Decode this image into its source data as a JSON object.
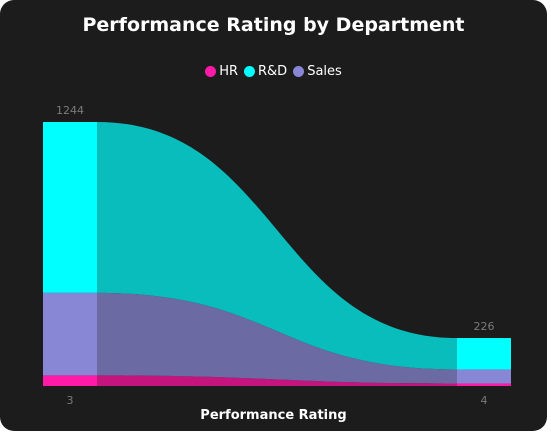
{
  "chart_data": {
    "type": "ribbon",
    "title": "Performance Rating by Department",
    "xlabel": "Performance Rating",
    "categories": [
      "3",
      "4"
    ],
    "totals": [
      1244,
      226
    ],
    "series": [
      {
        "name": "HR",
        "color": "#ff1aa8",
        "values": [
          50,
          12
        ]
      },
      {
        "name": "Sales",
        "color": "#8787d6",
        "values": [
          389,
          66
        ]
      },
      {
        "name": "R&D",
        "color": "#00ffff",
        "values": [
          805,
          148
        ]
      }
    ],
    "legend": {
      "order": [
        "HR",
        "R&D",
        "Sales"
      ],
      "placement": "top-center"
    },
    "grid": false
  }
}
